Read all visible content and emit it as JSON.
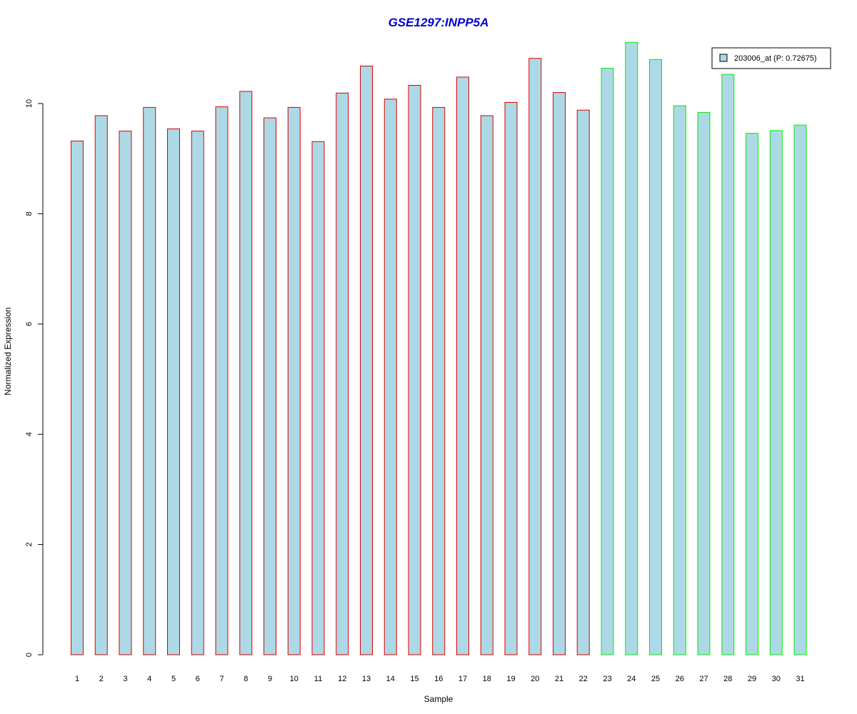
{
  "chart_data": {
    "type": "bar",
    "title": "GSE1297:INPP5A",
    "xlabel": "Sample",
    "ylabel": "Normalized Expression",
    "ylim": [
      0,
      11.1
    ],
    "yticks": [
      0,
      2,
      4,
      6,
      8,
      10
    ],
    "categories": [
      "1",
      "2",
      "3",
      "4",
      "5",
      "6",
      "7",
      "8",
      "9",
      "10",
      "11",
      "12",
      "13",
      "14",
      "15",
      "16",
      "17",
      "18",
      "19",
      "20",
      "21",
      "22",
      "23",
      "24",
      "25",
      "26",
      "27",
      "28",
      "29",
      "30",
      "31"
    ],
    "series": [
      {
        "name": "203006_at (P: 0.72675)",
        "values": [
          9.32,
          9.78,
          9.5,
          9.93,
          9.54,
          9.5,
          9.94,
          10.22,
          9.74,
          9.93,
          9.31,
          10.19,
          10.68,
          10.08,
          10.33,
          9.93,
          10.48,
          9.78,
          10.02,
          10.82,
          10.2,
          9.88,
          10.64,
          11.11,
          10.8,
          9.96,
          9.84,
          10.53,
          9.46,
          9.51,
          9.61
        ]
      }
    ],
    "groups": [
      {
        "from": 1,
        "to": 22,
        "border_color": "#dd0000"
      },
      {
        "from": 23,
        "to": 31,
        "border_color": "#00ee00"
      }
    ],
    "bar_fill": "#add8e6",
    "title_color": "#0000cc",
    "grid": false,
    "legend_position": "top-right"
  }
}
